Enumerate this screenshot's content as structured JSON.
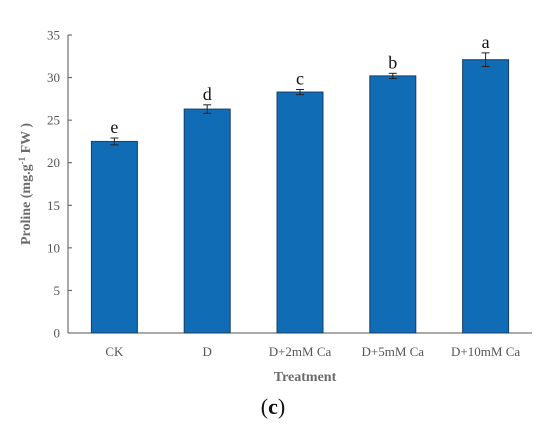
{
  "chart_data": {
    "type": "bar",
    "categories": [
      "CK",
      "D",
      "D+2mM Ca",
      "D+5mM Ca",
      "D+10mM Ca"
    ],
    "values": [
      22.5,
      26.3,
      28.3,
      30.2,
      32.1
    ],
    "errors": [
      0.4,
      0.5,
      0.3,
      0.3,
      0.8
    ],
    "significance": [
      "e",
      "d",
      "c",
      "b",
      "a"
    ],
    "xlabel": "Treatment",
    "ylabel_main": "Proline (mg.g",
    "ylabel_sup": "-1",
    "ylabel_tail": " FW )",
    "ylim": [
      0,
      35
    ],
    "yticks": [
      0,
      5,
      10,
      15,
      20,
      25,
      30,
      35
    ],
    "bar_color": "#0f6cb5",
    "bar_outline": "#1a3f66",
    "grid": false,
    "panel_label_open": "(",
    "panel_label_letter": "c",
    "panel_label_close": ")"
  }
}
